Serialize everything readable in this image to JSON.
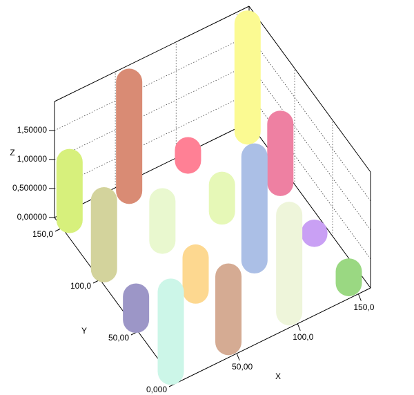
{
  "chart_data": {
    "type": "bar3d",
    "x_label": "X",
    "y_label": "Y",
    "z_label": "Z",
    "x": [
      8,
      57,
      7,
      55,
      106,
      155,
      152,
      104,
      102,
      4,
      53,
      2,
      50,
      100,
      150,
      149
    ],
    "y": [
      153,
      153,
      106,
      106,
      154,
      154,
      106,
      106,
      60,
      59,
      59,
      10,
      11,
      11,
      58,
      11
    ],
    "values": [
      1.0,
      1.88,
      1.19,
      0.68,
      0.18,
      1.86,
      1.02,
      0.46,
      1.79,
      0.4,
      0.57,
      1.38,
      1.13,
      1.68,
      0.02,
      0.2
    ],
    "colors": [
      "#d7f07c",
      "#d98b74",
      "#d3d39c",
      "#e9f8cf",
      "#ff8095",
      "#fbfa92",
      "#ee80a2",
      "#e6f8b7",
      "#abbfe6",
      "#9c96c7",
      "#fdd890",
      "#ccf6e8",
      "#d5ab93",
      "#eef5da",
      "#c9a0f4",
      "#9ad882"
    ],
    "xlim": [
      0,
      160
    ],
    "ylim": [
      0,
      160
    ],
    "zlim": [
      0,
      2
    ],
    "xticks": [
      {
        "value": 50,
        "label": "50,00"
      },
      {
        "value": 100,
        "label": "100,0"
      },
      {
        "value": 150,
        "label": "150,0"
      }
    ],
    "yticks": [
      {
        "value": 0,
        "label": "0,000"
      },
      {
        "value": 50,
        "label": "50,00"
      },
      {
        "value": 100,
        "label": "100,0"
      },
      {
        "value": 150,
        "label": "150,0"
      }
    ],
    "zticks": [
      {
        "value": 0,
        "label": "0,00000"
      },
      {
        "value": 0.5,
        "label": "0,500000"
      },
      {
        "value": 1,
        "label": "1,00000"
      },
      {
        "value": 1.5,
        "label": "1,50000"
      }
    ],
    "grid": true
  }
}
